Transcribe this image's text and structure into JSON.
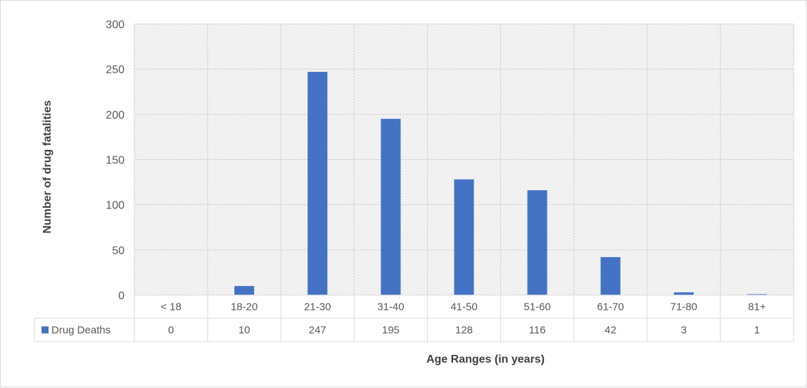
{
  "chart_data": {
    "type": "bar",
    "categories": [
      "< 18",
      "18-20",
      "21-30",
      "31-40",
      "41-50",
      "51-60",
      "61-70",
      "71-80",
      "81+"
    ],
    "series": [
      {
        "name": "Drug Deaths",
        "values": [
          0,
          10,
          247,
          195,
          128,
          116,
          42,
          3,
          1
        ],
        "color": "#4472c4"
      }
    ],
    "xlabel": "Age Ranges (in years)",
    "ylabel": "Number of drug fatalities",
    "ylim": [
      0,
      300
    ],
    "yticks": [
      0,
      50,
      100,
      150,
      200,
      250,
      300
    ],
    "grid": true,
    "plot_area_pattern": "diagonal-hatch",
    "legend": "data-table-left",
    "data_table": true
  }
}
